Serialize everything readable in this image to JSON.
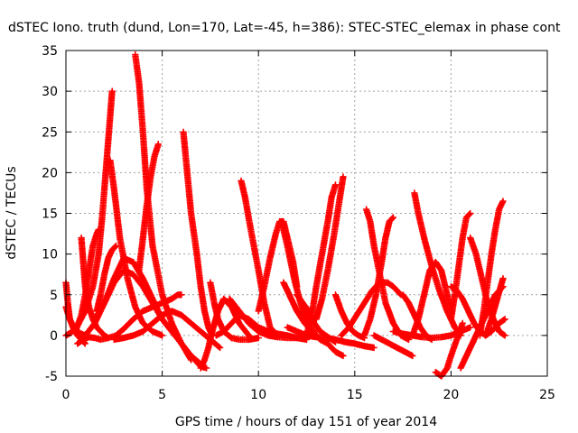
{
  "chart_data": {
    "type": "scatter",
    "title": "dSTEC Iono. truth (dund, Lon=170, Lat=-45, h=386): STEC-STEC_elemax in phase cont",
    "xlabel": "GPS time / hours of day 151 of year 2014",
    "ylabel": "dSTEC  / TECUs",
    "xlim": [
      0,
      25
    ],
    "ylim": [
      -5,
      35
    ],
    "xticks": [
      0,
      5,
      10,
      15,
      20,
      25
    ],
    "yticks": [
      -5,
      0,
      5,
      10,
      15,
      20,
      25,
      30,
      35
    ],
    "grid": true,
    "marker": "+",
    "color": "#ff0000",
    "series": [
      {
        "x": [
          0.0,
          0.1,
          0.2,
          0.4,
          0.6,
          0.8,
          1.0
        ],
        "y": [
          6.5,
          4.0,
          2.0,
          0.8,
          0.0,
          -0.5,
          -1.0
        ]
      },
      {
        "x": [
          0.0,
          0.3,
          0.6,
          1.0,
          1.4,
          1.7,
          1.9,
          2.1,
          2.3,
          2.4
        ],
        "y": [
          0.0,
          0.4,
          1.2,
          3.0,
          6.0,
          10.0,
          15.0,
          21.0,
          27.0,
          30.0
        ]
      },
      {
        "x": [
          0.0,
          0.2,
          0.4,
          0.6,
          0.8,
          1.0
        ],
        "y": [
          3.5,
          2.0,
          1.0,
          0.5,
          0.2,
          0.0
        ]
      },
      {
        "x": [
          0.8,
          0.9,
          1.0,
          1.2,
          1.4,
          1.6,
          1.8,
          2.0,
          2.2
        ],
        "y": [
          12.0,
          9.0,
          6.0,
          3.5,
          2.0,
          1.0,
          0.5,
          0.0,
          -0.3
        ]
      },
      {
        "x": [
          0.5,
          0.8,
          1.0,
          1.2,
          1.4,
          1.6,
          1.7
        ],
        "y": [
          0.5,
          2.5,
          5.0,
          8.0,
          11.0,
          12.5,
          13.0
        ]
      },
      {
        "x": [
          0.6,
          0.9,
          1.2,
          1.5,
          1.8,
          2.2,
          2.6,
          3.0,
          3.5,
          4.0,
          4.5,
          5.0,
          5.5,
          5.8,
          6.0
        ],
        "y": [
          -1.0,
          -0.5,
          -0.2,
          -0.3,
          -0.5,
          -0.3,
          0.0,
          0.8,
          2.0,
          3.0,
          3.5,
          4.0,
          4.5,
          5.0,
          5.0
        ]
      },
      {
        "x": [
          1.0,
          1.5,
          2.0,
          2.5,
          3.0,
          3.5,
          4.0,
          4.5,
          5.0,
          5.5,
          6.0,
          6.5,
          7.0
        ],
        "y": [
          0.0,
          1.5,
          4.0,
          6.5,
          8.0,
          7.5,
          6.0,
          4.0,
          2.0,
          0.5,
          -1.0,
          -2.5,
          -3.5
        ]
      },
      {
        "x": [
          1.5,
          2.0,
          2.5,
          3.0,
          3.5,
          4.0,
          4.5,
          5.0,
          5.5,
          6.0,
          6.5
        ],
        "y": [
          2.0,
          4.0,
          7.0,
          9.5,
          9.0,
          7.0,
          4.5,
          2.0,
          0.5,
          -1.0,
          -3.0
        ]
      },
      {
        "x": [
          2.3,
          2.5,
          2.8,
          3.2,
          3.6,
          4.0,
          4.5,
          5.0
        ],
        "y": [
          21.5,
          18.0,
          12.0,
          7.0,
          3.5,
          1.5,
          0.5,
          0.0
        ]
      },
      {
        "x": [
          1.6,
          1.8,
          2.0,
          2.2,
          2.4,
          2.6
        ],
        "y": [
          3.0,
          5.0,
          7.5,
          9.5,
          10.5,
          11.0
        ]
      },
      {
        "x": [
          3.6,
          3.8,
          4.0,
          4.2,
          4.5,
          5.0,
          5.5,
          6.0,
          6.5,
          7.0,
          7.3
        ],
        "y": [
          34.5,
          31.0,
          25.0,
          18.0,
          11.0,
          5.0,
          1.5,
          -1.0,
          -2.5,
          -3.8,
          -4.0
        ]
      },
      {
        "x": [
          3.8,
          4.0,
          4.2,
          4.4,
          4.6,
          4.8
        ],
        "y": [
          8.0,
          12.0,
          16.0,
          19.5,
          22.0,
          23.5
        ]
      },
      {
        "x": [
          2.5,
          3.0,
          3.5,
          4.0,
          4.5,
          5.0,
          5.5,
          6.0,
          6.5,
          7.0,
          7.5,
          8.0
        ],
        "y": [
          -0.5,
          -0.3,
          0.0,
          0.5,
          1.5,
          2.5,
          3.0,
          2.5,
          1.5,
          0.5,
          -0.5,
          -1.5
        ]
      },
      {
        "x": [
          6.1,
          6.3,
          6.5,
          6.8,
          7.0,
          7.2,
          7.4,
          7.6
        ],
        "y": [
          25.0,
          20.0,
          15.0,
          10.0,
          6.0,
          3.0,
          1.0,
          0.0
        ]
      },
      {
        "x": [
          7.0,
          7.2,
          7.4,
          7.6,
          7.9,
          8.2,
          8.6,
          9.0,
          9.5
        ],
        "y": [
          -4.0,
          -3.0,
          -1.5,
          0.5,
          3.0,
          4.5,
          3.5,
          1.5,
          0.0
        ]
      },
      {
        "x": [
          7.5,
          7.7,
          7.9,
          8.2,
          8.6,
          9.0,
          9.5,
          10.0
        ],
        "y": [
          6.5,
          4.0,
          2.0,
          0.5,
          -0.3,
          -0.5,
          -0.5,
          -0.3
        ]
      },
      {
        "x": [
          7.8,
          8.2,
          8.6,
          9.0,
          9.5,
          10.0,
          10.5,
          11.0,
          11.5,
          12.0
        ],
        "y": [
          0.0,
          0.5,
          1.5,
          2.5,
          2.0,
          1.0,
          0.5,
          0.2,
          0.0,
          -0.3
        ]
      },
      {
        "x": [
          8.5,
          9.0,
          9.5,
          10.0,
          10.5,
          11.0,
          11.5,
          12.0,
          12.5
        ],
        "y": [
          4.5,
          3.0,
          1.5,
          0.5,
          0.0,
          -0.2,
          -0.3,
          -0.3,
          -0.5
        ]
      },
      {
        "x": [
          9.1,
          9.3,
          9.6,
          10.0,
          10.3,
          10.6,
          11.0
        ],
        "y": [
          19.0,
          17.0,
          13.0,
          8.0,
          4.0,
          1.0,
          0.0
        ]
      },
      {
        "x": [
          10.0,
          10.3,
          10.6,
          10.9,
          11.1,
          11.3,
          11.5,
          11.8,
          12.0
        ],
        "y": [
          3.0,
          6.0,
          9.5,
          12.5,
          14.0,
          14.0,
          12.0,
          9.0,
          6.0
        ]
      },
      {
        "x": [
          11.2,
          11.5,
          11.9,
          12.3,
          12.7,
          13.0
        ],
        "y": [
          14.0,
          11.0,
          6.5,
          3.0,
          1.0,
          0.0
        ]
      },
      {
        "x": [
          11.3,
          11.6,
          12.0,
          12.4,
          12.8,
          13.2,
          13.6,
          14.0,
          14.4
        ],
        "y": [
          6.5,
          5.0,
          3.0,
          1.5,
          0.5,
          -0.5,
          -1.0,
          -2.0,
          -2.5
        ]
      },
      {
        "x": [
          11.5,
          12.0,
          12.5,
          13.0,
          13.5,
          14.0,
          14.5,
          15.0,
          15.5,
          16.0
        ],
        "y": [
          1.0,
          0.5,
          0.0,
          -0.2,
          -0.3,
          -0.5,
          -0.8,
          -1.0,
          -1.3,
          -1.5
        ]
      },
      {
        "x": [
          12.0,
          12.3,
          12.6,
          12.9,
          13.2,
          13.5,
          13.8,
          14.0
        ],
        "y": [
          5.0,
          4.0,
          3.0,
          1.5,
          0.5,
          0.0,
          -0.5,
          -0.8
        ]
      },
      {
        "x": [
          12.5,
          12.8,
          13.0,
          13.3,
          13.6,
          13.8,
          14.0
        ],
        "y": [
          0.0,
          3.0,
          6.0,
          10.0,
          14.0,
          17.0,
          18.5
        ]
      },
      {
        "x": [
          13.0,
          13.3,
          13.6,
          13.9,
          14.2,
          14.4
        ],
        "y": [
          2.0,
          4.5,
          8.0,
          12.0,
          16.5,
          19.5
        ]
      },
      {
        "x": [
          14.0,
          14.3,
          14.6,
          14.9,
          15.2,
          15.5
        ],
        "y": [
          5.0,
          3.0,
          1.5,
          0.5,
          0.0,
          -0.3
        ]
      },
      {
        "x": [
          14.3,
          14.7,
          15.1,
          15.5,
          15.9,
          16.3,
          16.7,
          17.0,
          17.4
        ],
        "y": [
          0.0,
          1.0,
          2.5,
          4.0,
          5.5,
          6.5,
          6.5,
          6.0,
          5.0
        ]
      },
      {
        "x": [
          15.6,
          15.8,
          16.0,
          16.3,
          16.6,
          17.0,
          17.4,
          17.8
        ],
        "y": [
          15.5,
          14.0,
          11.0,
          7.5,
          4.0,
          1.5,
          0.0,
          -0.5
        ]
      },
      {
        "x": [
          15.5,
          15.8,
          16.1,
          16.4,
          16.6,
          16.8,
          17.0
        ],
        "y": [
          0.0,
          2.0,
          5.0,
          9.0,
          12.0,
          14.0,
          14.5
        ]
      },
      {
        "x": [
          16.0,
          16.4,
          16.8,
          17.2,
          17.6,
          18.0
        ],
        "y": [
          0.0,
          -0.5,
          -1.0,
          -1.5,
          -2.0,
          -2.5
        ]
      },
      {
        "x": [
          17.5,
          17.8,
          18.1,
          18.4,
          18.7,
          19.0
        ],
        "y": [
          5.0,
          4.0,
          2.5,
          1.0,
          0.0,
          -0.5
        ]
      },
      {
        "x": [
          18.1,
          18.3,
          18.6,
          19.0,
          19.4,
          19.8,
          20.2,
          20.5
        ],
        "y": [
          17.5,
          15.0,
          12.0,
          8.5,
          5.5,
          3.0,
          1.0,
          0.0
        ]
      },
      {
        "x": [
          17.0,
          17.5,
          18.0,
          18.5,
          19.0,
          19.5,
          20.0,
          20.5,
          21.0
        ],
        "y": [
          0.5,
          0.2,
          0.0,
          -0.2,
          -0.3,
          -0.2,
          0.0,
          0.5,
          1.0
        ]
      },
      {
        "x": [
          18.0,
          18.3,
          18.6,
          18.9,
          19.2,
          19.5,
          19.8,
          20.0
        ],
        "y": [
          0.0,
          2.0,
          5.0,
          8.0,
          9.0,
          8.0,
          5.0,
          3.0
        ]
      },
      {
        "x": [
          19.2,
          19.5,
          19.8,
          20.0,
          20.3,
          20.6
        ],
        "y": [
          -4.5,
          -5.0,
          -4.0,
          -2.5,
          -0.5,
          1.5
        ]
      },
      {
        "x": [
          20.0,
          20.2,
          20.4,
          20.6,
          20.8,
          21.0
        ],
        "y": [
          2.0,
          5.0,
          8.5,
          12.0,
          14.5,
          15.0
        ]
      },
      {
        "x": [
          20.5,
          20.8,
          21.1,
          21.4,
          21.7,
          22.0,
          22.3,
          22.7
        ],
        "y": [
          -4.0,
          -2.5,
          -1.0,
          0.5,
          2.0,
          3.5,
          5.0,
          6.0
        ]
      },
      {
        "x": [
          20.0,
          20.3,
          20.6,
          20.9,
          21.2,
          21.5,
          21.8,
          22.1,
          22.5,
          22.8
        ],
        "y": [
          6.0,
          5.5,
          4.5,
          3.0,
          1.5,
          0.5,
          0.0,
          0.5,
          1.5,
          2.0
        ]
      },
      {
        "x": [
          21.0,
          21.3,
          21.6,
          21.9,
          22.2,
          22.5,
          22.8
        ],
        "y": [
          12.0,
          10.0,
          7.0,
          4.0,
          2.0,
          0.5,
          0.0
        ]
      },
      {
        "x": [
          21.5,
          21.7,
          21.9,
          22.1,
          22.3,
          22.5,
          22.7
        ],
        "y": [
          0.0,
          3.0,
          6.5,
          10.0,
          13.0,
          15.5,
          16.5
        ]
      },
      {
        "x": [
          21.8,
          22.1,
          22.4,
          22.7
        ],
        "y": [
          0.0,
          2.0,
          4.5,
          7.0
        ]
      }
    ]
  }
}
